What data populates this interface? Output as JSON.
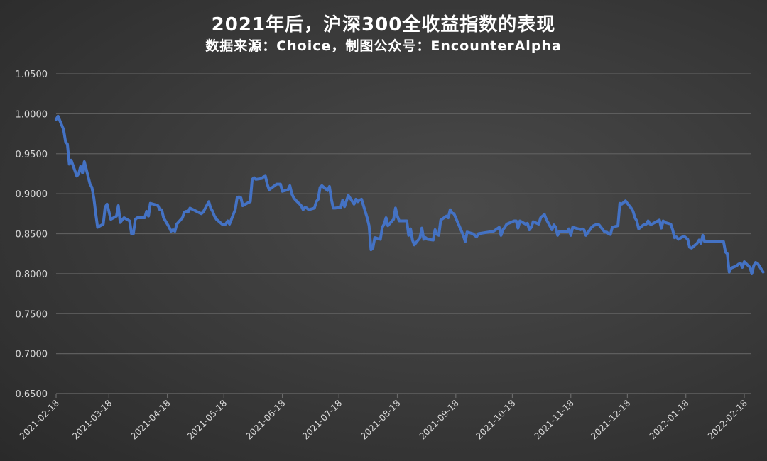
{
  "chart_data": {
    "type": "line",
    "title": "2021年后，沪深300全收益指数的表现",
    "subtitle": "数据来源：Choice，制图公众号：EncounterAlpha",
    "xlabel": "",
    "ylabel": "",
    "ylim": [
      0.65,
      1.05
    ],
    "yticks": [
      "1.0500",
      "1.0000",
      "0.9500",
      "0.9000",
      "0.8500",
      "0.8000",
      "0.7500",
      "0.7000",
      "0.6500"
    ],
    "xticks": [
      "2021-02-18",
      "2021-03-18",
      "2021-04-18",
      "2021-05-18",
      "2021-06-18",
      "2021-07-18",
      "2021-08-18",
      "2021-09-18",
      "2021-10-18",
      "2021-11-18",
      "2021-12-18",
      "2022-01-18",
      "2022-02-18"
    ],
    "grid": true,
    "legend": "none",
    "series": [
      {
        "name": "沪深300全收益指数",
        "color": "#4472C4",
        "points": [
          [
            "2021-02-18",
            0.993
          ],
          [
            "2021-02-19",
            0.997
          ],
          [
            "2021-02-22",
            0.98
          ],
          [
            "2021-02-23",
            0.965
          ],
          [
            "2021-02-24",
            0.962
          ],
          [
            "2021-02-25",
            0.937
          ],
          [
            "2021-02-26",
            0.942
          ],
          [
            "2021-03-01",
            0.922
          ],
          [
            "2021-03-02",
            0.925
          ],
          [
            "2021-03-03",
            0.934
          ],
          [
            "2021-03-04",
            0.926
          ],
          [
            "2021-03-05",
            0.94
          ],
          [
            "2021-03-08",
            0.912
          ],
          [
            "2021-03-09",
            0.908
          ],
          [
            "2021-03-10",
            0.895
          ],
          [
            "2021-03-11",
            0.875
          ],
          [
            "2021-03-12",
            0.858
          ],
          [
            "2021-03-15",
            0.862
          ],
          [
            "2021-03-16",
            0.883
          ],
          [
            "2021-03-17",
            0.887
          ],
          [
            "2021-03-18",
            0.878
          ],
          [
            "2021-03-19",
            0.868
          ],
          [
            "2021-03-22",
            0.872
          ],
          [
            "2021-03-23",
            0.885
          ],
          [
            "2021-03-24",
            0.864
          ],
          [
            "2021-03-25",
            0.867
          ],
          [
            "2021-03-26",
            0.87
          ],
          [
            "2021-03-29",
            0.866
          ],
          [
            "2021-03-30",
            0.85
          ],
          [
            "2021-03-31",
            0.85
          ],
          [
            "2021-04-01",
            0.868
          ],
          [
            "2021-04-02",
            0.87
          ],
          [
            "2021-04-06",
            0.87
          ],
          [
            "2021-04-07",
            0.878
          ],
          [
            "2021-04-08",
            0.872
          ],
          [
            "2021-04-09",
            0.888
          ],
          [
            "2021-04-12",
            0.886
          ],
          [
            "2021-04-13",
            0.885
          ],
          [
            "2021-04-14",
            0.88
          ],
          [
            "2021-04-15",
            0.88
          ],
          [
            "2021-04-16",
            0.87
          ],
          [
            "2021-04-19",
            0.858
          ],
          [
            "2021-04-20",
            0.853
          ],
          [
            "2021-04-21",
            0.855
          ],
          [
            "2021-04-22",
            0.853
          ],
          [
            "2021-04-23",
            0.862
          ],
          [
            "2021-04-26",
            0.87
          ],
          [
            "2021-04-27",
            0.877
          ],
          [
            "2021-04-28",
            0.878
          ],
          [
            "2021-04-29",
            0.877
          ],
          [
            "2021-04-30",
            0.882
          ],
          [
            "2021-05-06",
            0.875
          ],
          [
            "2021-05-07",
            0.877
          ],
          [
            "2021-05-10",
            0.89
          ],
          [
            "2021-05-11",
            0.882
          ],
          [
            "2021-05-12",
            0.878
          ],
          [
            "2021-05-13",
            0.872
          ],
          [
            "2021-05-14",
            0.868
          ],
          [
            "2021-05-17",
            0.862
          ],
          [
            "2021-05-18",
            0.862
          ],
          [
            "2021-05-19",
            0.862
          ],
          [
            "2021-05-20",
            0.866
          ],
          [
            "2021-05-21",
            0.862
          ],
          [
            "2021-05-24",
            0.88
          ],
          [
            "2021-05-25",
            0.895
          ],
          [
            "2021-05-26",
            0.896
          ],
          [
            "2021-05-27",
            0.895
          ],
          [
            "2021-05-28",
            0.885
          ],
          [
            "2021-05-31",
            0.889
          ],
          [
            "2021-06-01",
            0.89
          ],
          [
            "2021-06-02",
            0.918
          ],
          [
            "2021-06-03",
            0.92
          ],
          [
            "2021-06-04",
            0.918
          ],
          [
            "2021-06-07",
            0.919
          ],
          [
            "2021-06-08",
            0.921
          ],
          [
            "2021-06-09",
            0.922
          ],
          [
            "2021-06-10",
            0.912
          ],
          [
            "2021-06-11",
            0.905
          ],
          [
            "2021-06-15",
            0.912
          ],
          [
            "2021-06-16",
            0.912
          ],
          [
            "2021-06-17",
            0.912
          ],
          [
            "2021-06-18",
            0.903
          ],
          [
            "2021-06-21",
            0.905
          ],
          [
            "2021-06-22",
            0.91
          ],
          [
            "2021-06-23",
            0.9
          ],
          [
            "2021-06-24",
            0.895
          ],
          [
            "2021-06-25",
            0.892
          ],
          [
            "2021-06-28",
            0.885
          ],
          [
            "2021-06-29",
            0.88
          ],
          [
            "2021-06-30",
            0.883
          ],
          [
            "2021-07-01",
            0.882
          ],
          [
            "2021-07-02",
            0.88
          ],
          [
            "2021-07-05",
            0.882
          ],
          [
            "2021-07-06",
            0.89
          ],
          [
            "2021-07-07",
            0.893
          ],
          [
            "2021-07-08",
            0.908
          ],
          [
            "2021-07-09",
            0.91
          ],
          [
            "2021-07-12",
            0.904
          ],
          [
            "2021-07-13",
            0.909
          ],
          [
            "2021-07-14",
            0.893
          ],
          [
            "2021-07-15",
            0.882
          ],
          [
            "2021-07-16",
            0.882
          ],
          [
            "2021-07-19",
            0.883
          ],
          [
            "2021-07-20",
            0.892
          ],
          [
            "2021-07-21",
            0.884
          ],
          [
            "2021-07-22",
            0.891
          ],
          [
            "2021-07-23",
            0.898
          ],
          [
            "2021-07-26",
            0.887
          ],
          [
            "2021-07-27",
            0.893
          ],
          [
            "2021-07-28",
            0.89
          ],
          [
            "2021-07-29",
            0.892
          ],
          [
            "2021-07-30",
            0.893
          ],
          [
            "2021-08-02",
            0.87
          ],
          [
            "2021-08-03",
            0.86
          ],
          [
            "2021-08-04",
            0.83
          ],
          [
            "2021-08-05",
            0.832
          ],
          [
            "2021-08-06",
            0.845
          ],
          [
            "2021-08-09",
            0.843
          ],
          [
            "2021-08-10",
            0.858
          ],
          [
            "2021-08-11",
            0.862
          ],
          [
            "2021-08-12",
            0.87
          ],
          [
            "2021-08-13",
            0.86
          ],
          [
            "2021-08-16",
            0.868
          ],
          [
            "2021-08-17",
            0.882
          ],
          [
            "2021-08-18",
            0.872
          ],
          [
            "2021-08-19",
            0.866
          ],
          [
            "2021-08-20",
            0.866
          ],
          [
            "2021-08-23",
            0.866
          ],
          [
            "2021-08-24",
            0.848
          ],
          [
            "2021-08-25",
            0.856
          ],
          [
            "2021-08-26",
            0.842
          ],
          [
            "2021-08-27",
            0.836
          ],
          [
            "2021-08-30",
            0.845
          ],
          [
            "2021-08-31",
            0.857
          ],
          [
            "2021-09-01",
            0.843
          ],
          [
            "2021-09-02",
            0.845
          ],
          [
            "2021-09-03",
            0.843
          ],
          [
            "2021-09-06",
            0.842
          ],
          [
            "2021-09-07",
            0.855
          ],
          [
            "2021-09-08",
            0.849
          ],
          [
            "2021-09-09",
            0.848
          ],
          [
            "2021-09-10",
            0.867
          ],
          [
            "2021-09-13",
            0.872
          ],
          [
            "2021-09-14",
            0.87
          ],
          [
            "2021-09-15",
            0.88
          ],
          [
            "2021-09-16",
            0.876
          ],
          [
            "2021-09-17",
            0.875
          ],
          [
            "2021-09-22",
            0.848
          ],
          [
            "2021-09-23",
            0.84
          ],
          [
            "2021-09-24",
            0.852
          ],
          [
            "2021-09-27",
            0.85
          ],
          [
            "2021-09-28",
            0.848
          ],
          [
            "2021-09-29",
            0.846
          ],
          [
            "2021-09-30",
            0.85
          ],
          [
            "2021-10-08",
            0.853
          ],
          [
            "2021-10-11",
            0.858
          ],
          [
            "2021-10-12",
            0.848
          ],
          [
            "2021-10-13",
            0.855
          ],
          [
            "2021-10-14",
            0.858
          ],
          [
            "2021-10-15",
            0.862
          ],
          [
            "2021-10-18",
            0.865
          ],
          [
            "2021-10-19",
            0.866
          ],
          [
            "2021-10-20",
            0.866
          ],
          [
            "2021-10-21",
            0.857
          ],
          [
            "2021-10-22",
            0.866
          ],
          [
            "2021-10-25",
            0.862
          ],
          [
            "2021-10-26",
            0.863
          ],
          [
            "2021-10-27",
            0.855
          ],
          [
            "2021-10-28",
            0.858
          ],
          [
            "2021-10-29",
            0.865
          ],
          [
            "2021-11-01",
            0.862
          ],
          [
            "2021-11-02",
            0.87
          ],
          [
            "2021-11-03",
            0.872
          ],
          [
            "2021-11-04",
            0.874
          ],
          [
            "2021-11-05",
            0.868
          ],
          [
            "2021-11-08",
            0.855
          ],
          [
            "2021-11-09",
            0.861
          ],
          [
            "2021-11-10",
            0.858
          ],
          [
            "2021-11-11",
            0.848
          ],
          [
            "2021-11-12",
            0.853
          ],
          [
            "2021-11-15",
            0.853
          ],
          [
            "2021-11-16",
            0.852
          ],
          [
            "2021-11-17",
            0.856
          ],
          [
            "2021-11-18",
            0.848
          ],
          [
            "2021-11-19",
            0.858
          ],
          [
            "2021-11-22",
            0.856
          ],
          [
            "2021-11-23",
            0.855
          ],
          [
            "2021-11-24",
            0.856
          ],
          [
            "2021-11-25",
            0.855
          ],
          [
            "2021-11-26",
            0.848
          ],
          [
            "2021-11-29",
            0.858
          ],
          [
            "2021-11-30",
            0.86
          ],
          [
            "2021-12-01",
            0.861
          ],
          [
            "2021-12-02",
            0.862
          ],
          [
            "2021-12-03",
            0.861
          ],
          [
            "2021-12-06",
            0.852
          ],
          [
            "2021-12-07",
            0.852
          ],
          [
            "2021-12-08",
            0.85
          ],
          [
            "2021-12-09",
            0.849
          ],
          [
            "2021-12-10",
            0.858
          ],
          [
            "2021-12-13",
            0.86
          ],
          [
            "2021-12-14",
            0.888
          ],
          [
            "2021-12-15",
            0.887
          ],
          [
            "2021-12-16",
            0.889
          ],
          [
            "2021-12-17",
            0.891
          ],
          [
            "2021-12-20",
            0.882
          ],
          [
            "2021-12-21",
            0.878
          ],
          [
            "2021-12-22",
            0.87
          ],
          [
            "2021-12-23",
            0.866
          ],
          [
            "2021-12-24",
            0.856
          ],
          [
            "2021-12-27",
            0.862
          ],
          [
            "2021-12-28",
            0.862
          ],
          [
            "2021-12-29",
            0.866
          ],
          [
            "2021-12-30",
            0.862
          ],
          [
            "2021-12-31",
            0.862
          ],
          [
            "2022-01-04",
            0.867
          ],
          [
            "2022-01-05",
            0.857
          ],
          [
            "2022-01-06",
            0.866
          ],
          [
            "2022-01-07",
            0.864
          ],
          [
            "2022-01-10",
            0.862
          ],
          [
            "2022-01-11",
            0.855
          ],
          [
            "2022-01-12",
            0.845
          ],
          [
            "2022-01-13",
            0.846
          ],
          [
            "2022-01-14",
            0.843
          ],
          [
            "2022-01-17",
            0.847
          ],
          [
            "2022-01-18",
            0.845
          ],
          [
            "2022-01-19",
            0.843
          ],
          [
            "2022-01-20",
            0.833
          ],
          [
            "2022-01-21",
            0.832
          ],
          [
            "2022-01-24",
            0.838
          ],
          [
            "2022-01-25",
            0.842
          ],
          [
            "2022-01-26",
            0.838
          ],
          [
            "2022-01-27",
            0.848
          ],
          [
            "2022-01-28",
            0.84
          ],
          [
            "2022-02-07",
            0.84
          ],
          [
            "2022-02-08",
            0.827
          ],
          [
            "2022-02-09",
            0.825
          ],
          [
            "2022-02-10",
            0.802
          ],
          [
            "2022-02-11",
            0.807
          ],
          [
            "2022-02-14",
            0.81
          ],
          [
            "2022-02-15",
            0.812
          ],
          [
            "2022-02-16",
            0.813
          ],
          [
            "2022-02-17",
            0.808
          ],
          [
            "2022-02-18",
            0.815
          ],
          [
            "2022-02-21",
            0.808
          ],
          [
            "2022-02-22",
            0.8
          ],
          [
            "2022-02-23",
            0.81
          ],
          [
            "2022-02-24",
            0.814
          ],
          [
            "2022-02-25",
            0.813
          ],
          [
            "2022-02-28",
            0.802
          ]
        ]
      }
    ]
  }
}
